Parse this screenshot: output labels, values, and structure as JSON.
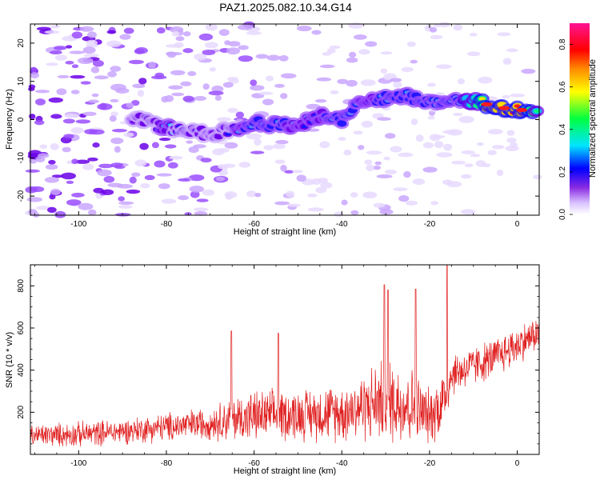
{
  "title": "PAZ1.2025.082.10.34.G14",
  "chart_data": [
    {
      "type": "heatmap",
      "xlabel": "Height of straight line (km)",
      "ylabel": "Frequency (Hz)",
      "xlim": [
        -111,
        5
      ],
      "ylim": [
        -25,
        25
      ],
      "xticks": [
        -100,
        -80,
        -60,
        -40,
        -20,
        0
      ],
      "yticks": [
        -20,
        -10,
        0,
        10,
        20
      ],
      "colorbar": {
        "label": "Normalized spectral amplitude",
        "range": [
          0,
          0.9
        ],
        "ticks": [
          0.0,
          0.2,
          0.4,
          0.6,
          0.8
        ],
        "colormap": "rainbow (violet → blue → cyan → green → yellow → red → magenta)"
      },
      "ridge": {
        "description_points": [
          {
            "x": -88,
            "y": 0.5,
            "amp": 0.2
          },
          {
            "x": -80,
            "y": -2,
            "amp": 0.3
          },
          {
            "x": -70,
            "y": -4,
            "amp": 0.2
          },
          {
            "x": -60,
            "y": -1,
            "amp": 0.35
          },
          {
            "x": -50,
            "y": -1.5,
            "amp": 0.3
          },
          {
            "x": -45,
            "y": 1,
            "amp": 0.3
          },
          {
            "x": -40,
            "y": 0,
            "amp": 0.35
          },
          {
            "x": -35,
            "y": 5,
            "amp": 0.3
          },
          {
            "x": -25,
            "y": 6,
            "amp": 0.35
          },
          {
            "x": -20,
            "y": 5,
            "amp": 0.35
          },
          {
            "x": -10,
            "y": 5,
            "amp": 0.45
          },
          {
            "x": -7,
            "y": 4,
            "amp": 0.85
          },
          {
            "x": -3,
            "y": 3,
            "amp": 0.85
          },
          {
            "x": 1,
            "y": 2.5,
            "amp": 0.85
          },
          {
            "x": 5,
            "y": 2,
            "amp": 0.5
          }
        ]
      },
      "grid": false
    },
    {
      "type": "line",
      "color": "#e02020",
      "xlabel": "Height of straight line (km)",
      "ylabel": "SNR (10 * v/v)",
      "xlim": [
        -111,
        5
      ],
      "ylim": [
        0,
        900
      ],
      "xticks": [
        -100,
        -80,
        -60,
        -40,
        -20,
        0
      ],
      "yticks": [
        200,
        400,
        600,
        800
      ],
      "envelope": [
        {
          "x": -111,
          "mean": 90,
          "spread": 60
        },
        {
          "x": -100,
          "mean": 95,
          "spread": 70
        },
        {
          "x": -90,
          "mean": 110,
          "spread": 70
        },
        {
          "x": -80,
          "mean": 130,
          "spread": 80
        },
        {
          "x": -70,
          "mean": 150,
          "spread": 90
        },
        {
          "x": -65,
          "mean": 170,
          "spread": 130
        },
        {
          "x": -60,
          "mean": 180,
          "spread": 140
        },
        {
          "x": -50,
          "mean": 190,
          "spread": 140
        },
        {
          "x": -40,
          "mean": 200,
          "spread": 160
        },
        {
          "x": -35,
          "mean": 230,
          "spread": 190
        },
        {
          "x": -30,
          "mean": 260,
          "spread": 240
        },
        {
          "x": -25,
          "mean": 240,
          "spread": 230
        },
        {
          "x": -20,
          "mean": 180,
          "spread": 150
        },
        {
          "x": -17,
          "mean": 250,
          "spread": 200
        },
        {
          "x": -15,
          "mean": 380,
          "spread": 120
        },
        {
          "x": -10,
          "mean": 420,
          "spread": 110
        },
        {
          "x": -5,
          "mean": 460,
          "spread": 110
        },
        {
          "x": 0,
          "mean": 520,
          "spread": 110
        },
        {
          "x": 5,
          "mean": 580,
          "spread": 90
        }
      ],
      "peaks": [
        {
          "x": -30.3,
          "y": 805
        },
        {
          "x": -29.5,
          "y": 780
        },
        {
          "x": -23.2,
          "y": 785
        },
        {
          "x": -16.0,
          "y": 905
        },
        {
          "x": -65.2,
          "y": 585
        },
        {
          "x": -54.5,
          "y": 575
        }
      ],
      "grid": false
    }
  ]
}
